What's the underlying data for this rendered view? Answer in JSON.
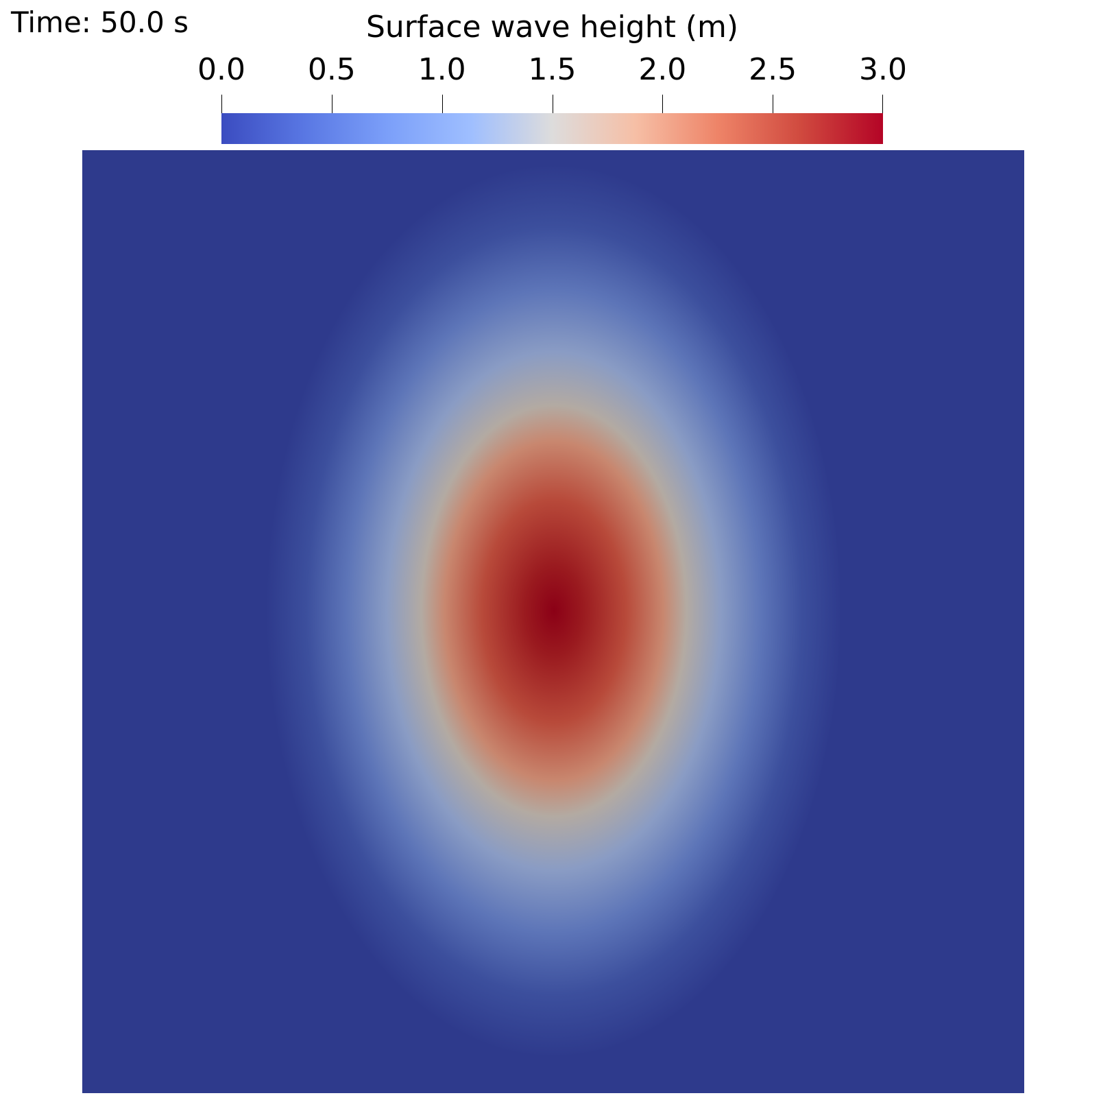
{
  "time_label": "Time: 50.0 s",
  "chart_data": {
    "type": "heatmap",
    "title": "Surface wave height (m)",
    "colorbar": {
      "min": 0.0,
      "max": 3.0,
      "ticks": [
        "0.0",
        "0.5",
        "1.0",
        "1.5",
        "2.0",
        "2.5",
        "3.0"
      ],
      "tick_values": [
        0.0,
        0.5,
        1.0,
        1.5,
        2.0,
        2.5,
        3.0
      ],
      "colormap": "Cool to Warm",
      "stops": [
        {
          "t": 0.0,
          "color": "#3b4cc0"
        },
        {
          "t": 0.125,
          "color": "#5977e3"
        },
        {
          "t": 0.25,
          "color": "#7b9ff9"
        },
        {
          "t": 0.375,
          "color": "#9ebeff"
        },
        {
          "t": 0.5,
          "color": "#dddcdc"
        },
        {
          "t": 0.625,
          "color": "#f6bfa6"
        },
        {
          "t": 0.75,
          "color": "#ee8468"
        },
        {
          "t": 0.875,
          "color": "#d04a3f"
        },
        {
          "t": 1.0,
          "color": "#b40426"
        }
      ]
    },
    "field": {
      "background_color": "#2e3a8c",
      "peak_value": 3.0,
      "peak_color": "#8b0016",
      "ellipse_stops": [
        {
          "offset": 0.0,
          "color": "#8b0016"
        },
        {
          "offset": 0.1,
          "color": "#9a1a1f"
        },
        {
          "offset": 0.25,
          "color": "#b84a3a"
        },
        {
          "offset": 0.38,
          "color": "#c8876f"
        },
        {
          "offset": 0.46,
          "color": "#b3aaa2"
        },
        {
          "offset": 0.58,
          "color": "#8a9cc4"
        },
        {
          "offset": 0.72,
          "color": "#5d75b8"
        },
        {
          "offset": 0.86,
          "color": "#3c4f9d"
        },
        {
          "offset": 1.0,
          "color": "#2e3a8c"
        }
      ]
    }
  }
}
